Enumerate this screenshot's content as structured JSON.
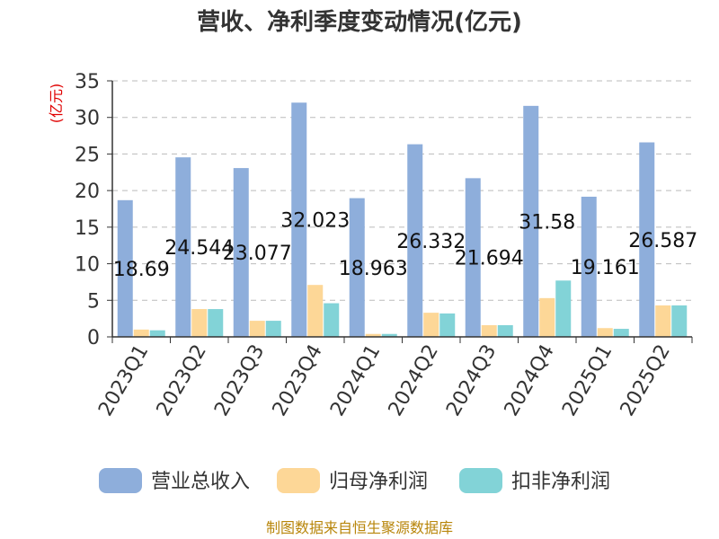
{
  "chart_data": {
    "type": "bar",
    "title": "营收、净利季度变动情况(亿元)",
    "ylabel": "(亿元)",
    "xlabel": "",
    "ylim": [
      0,
      35
    ],
    "yticks": [
      0,
      5,
      10,
      15,
      20,
      25,
      30,
      35
    ],
    "grid": true,
    "legend_position": "bottom",
    "categories": [
      "2023Q1",
      "2023Q2",
      "2023Q3",
      "2023Q4",
      "2024Q1",
      "2024Q2",
      "2024Q3",
      "2024Q4",
      "2025Q1",
      "2025Q2"
    ],
    "series": [
      {
        "name": "营业总收入",
        "color": "#8eaedb",
        "values": [
          18.69,
          24.544,
          23.077,
          32.023,
          18.963,
          26.332,
          21.694,
          31.58,
          19.161,
          26.587
        ],
        "labels": [
          "18.69",
          "24.544",
          "23.077",
          "32.023",
          "18.963",
          "26.332",
          "21.694",
          "31.58",
          "19.161",
          "26.587"
        ]
      },
      {
        "name": "归母净利润",
        "color": "#fdd797",
        "values": [
          1.0,
          3.8,
          2.2,
          7.1,
          0.4,
          3.3,
          1.6,
          5.3,
          1.2,
          4.3
        ]
      },
      {
        "name": "扣非净利润",
        "color": "#82d3d7",
        "values": [
          0.9,
          3.8,
          2.2,
          4.6,
          0.4,
          3.2,
          1.6,
          7.7,
          1.1,
          4.3
        ]
      }
    ],
    "source": "制图数据来自恒生聚源数据库"
  }
}
